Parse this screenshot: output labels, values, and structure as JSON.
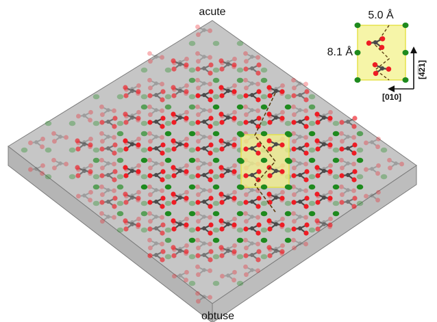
{
  "labels": {
    "top": "acute",
    "bottom": "obtuse"
  },
  "inset": {
    "width_label": "5.0 Å",
    "height_label": "8.1 Å",
    "vertical_direction": "[4̅2̅1]",
    "horizontal_direction": "[010]"
  },
  "colors": {
    "slab_top": "#c4c4c4",
    "slab_side": "#b7b7b7",
    "slab_edge": "#7a7a7a",
    "calcium": "#1e8a1e",
    "oxygen": "#ee1c24",
    "carbon": "#4a4a4a",
    "unit_cell_fill": "#f6f5a8",
    "unit_cell_edge": "#e5e24a",
    "zigzag": "#5a3a10"
  },
  "icons": {
    "arrow_up": "arrow-up-icon",
    "arrow_left": "arrow-left-icon"
  }
}
